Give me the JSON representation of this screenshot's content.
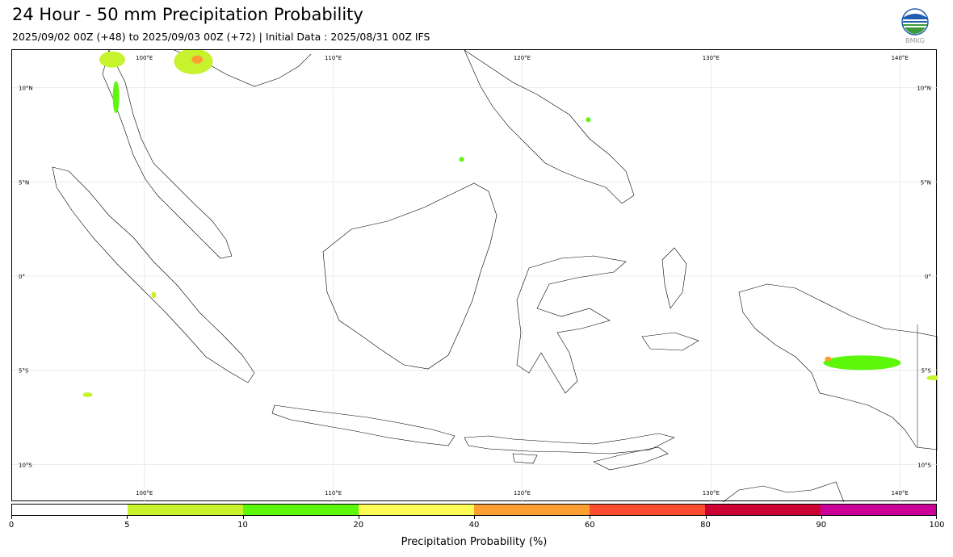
{
  "header": {
    "title": "24 Hour - 50 mm Precipitation Probability",
    "subtitle": "2025/09/02 00Z (+48) to 2025/09/03 00Z (+72) | Initial Data : 2025/08/31 00Z IFS"
  },
  "logo": {
    "icon": "bmkg-logo-icon",
    "text": "BMKG"
  },
  "map": {
    "lon_range": [
      93,
      142
    ],
    "lat_range": [
      -12,
      12
    ],
    "grid": true,
    "lon_ticks": [
      "100°E",
      "110°E",
      "120°E",
      "130°E",
      "140°E"
    ],
    "lat_ticks": [
      "10°N",
      "5°N",
      "0°",
      "5°S",
      "10°S"
    ],
    "lon_values": [
      100,
      110,
      120,
      130,
      140
    ],
    "lat_values": [
      10,
      5,
      0,
      -5,
      -10
    ]
  },
  "colorbar": {
    "label": "Precipitation Probability (%)",
    "ticks": [
      "0",
      "5",
      "10",
      "20",
      "40",
      "60",
      "80",
      "90",
      "100"
    ],
    "colors": [
      "#ffffff",
      "#c6f22e",
      "#5cf70b",
      "#fdfb56",
      "#fd9e33",
      "#fd4c2e",
      "#cc0033",
      "#cc0099"
    ]
  },
  "precip_areas": [
    {
      "region": "northern-thailand",
      "lon": 98.3,
      "lat": 11.5,
      "level": "5-10"
    },
    {
      "region": "burma-coast",
      "lon": 98.5,
      "lat": 9.5,
      "level": "10-20"
    },
    {
      "region": "cambodia",
      "lon": 102.6,
      "lat": 11.4,
      "level": "5-10"
    },
    {
      "region": "cambodia-core",
      "lon": 102.8,
      "lat": 11.5,
      "level": "40-60"
    },
    {
      "region": "mindanao",
      "lon": 123.5,
      "lat": 8.3,
      "level": "10-20"
    },
    {
      "region": "sabah-offshore",
      "lon": 116.8,
      "lat": 6.2,
      "level": "10-20"
    },
    {
      "region": "west-sumatra",
      "lon": 100.5,
      "lat": -1.0,
      "level": "5-10"
    },
    {
      "region": "indian-ocean",
      "lon": 97.0,
      "lat": -6.3,
      "level": "5-10"
    },
    {
      "region": "papua-highlands",
      "lon": 138.0,
      "lat": -4.6,
      "level": "10-20"
    },
    {
      "region": "papua-highlands-core",
      "lon": 136.2,
      "lat": -4.4,
      "level": "40-60"
    },
    {
      "region": "png-east",
      "lon": 141.8,
      "lat": -5.4,
      "level": "5-10"
    }
  ]
}
